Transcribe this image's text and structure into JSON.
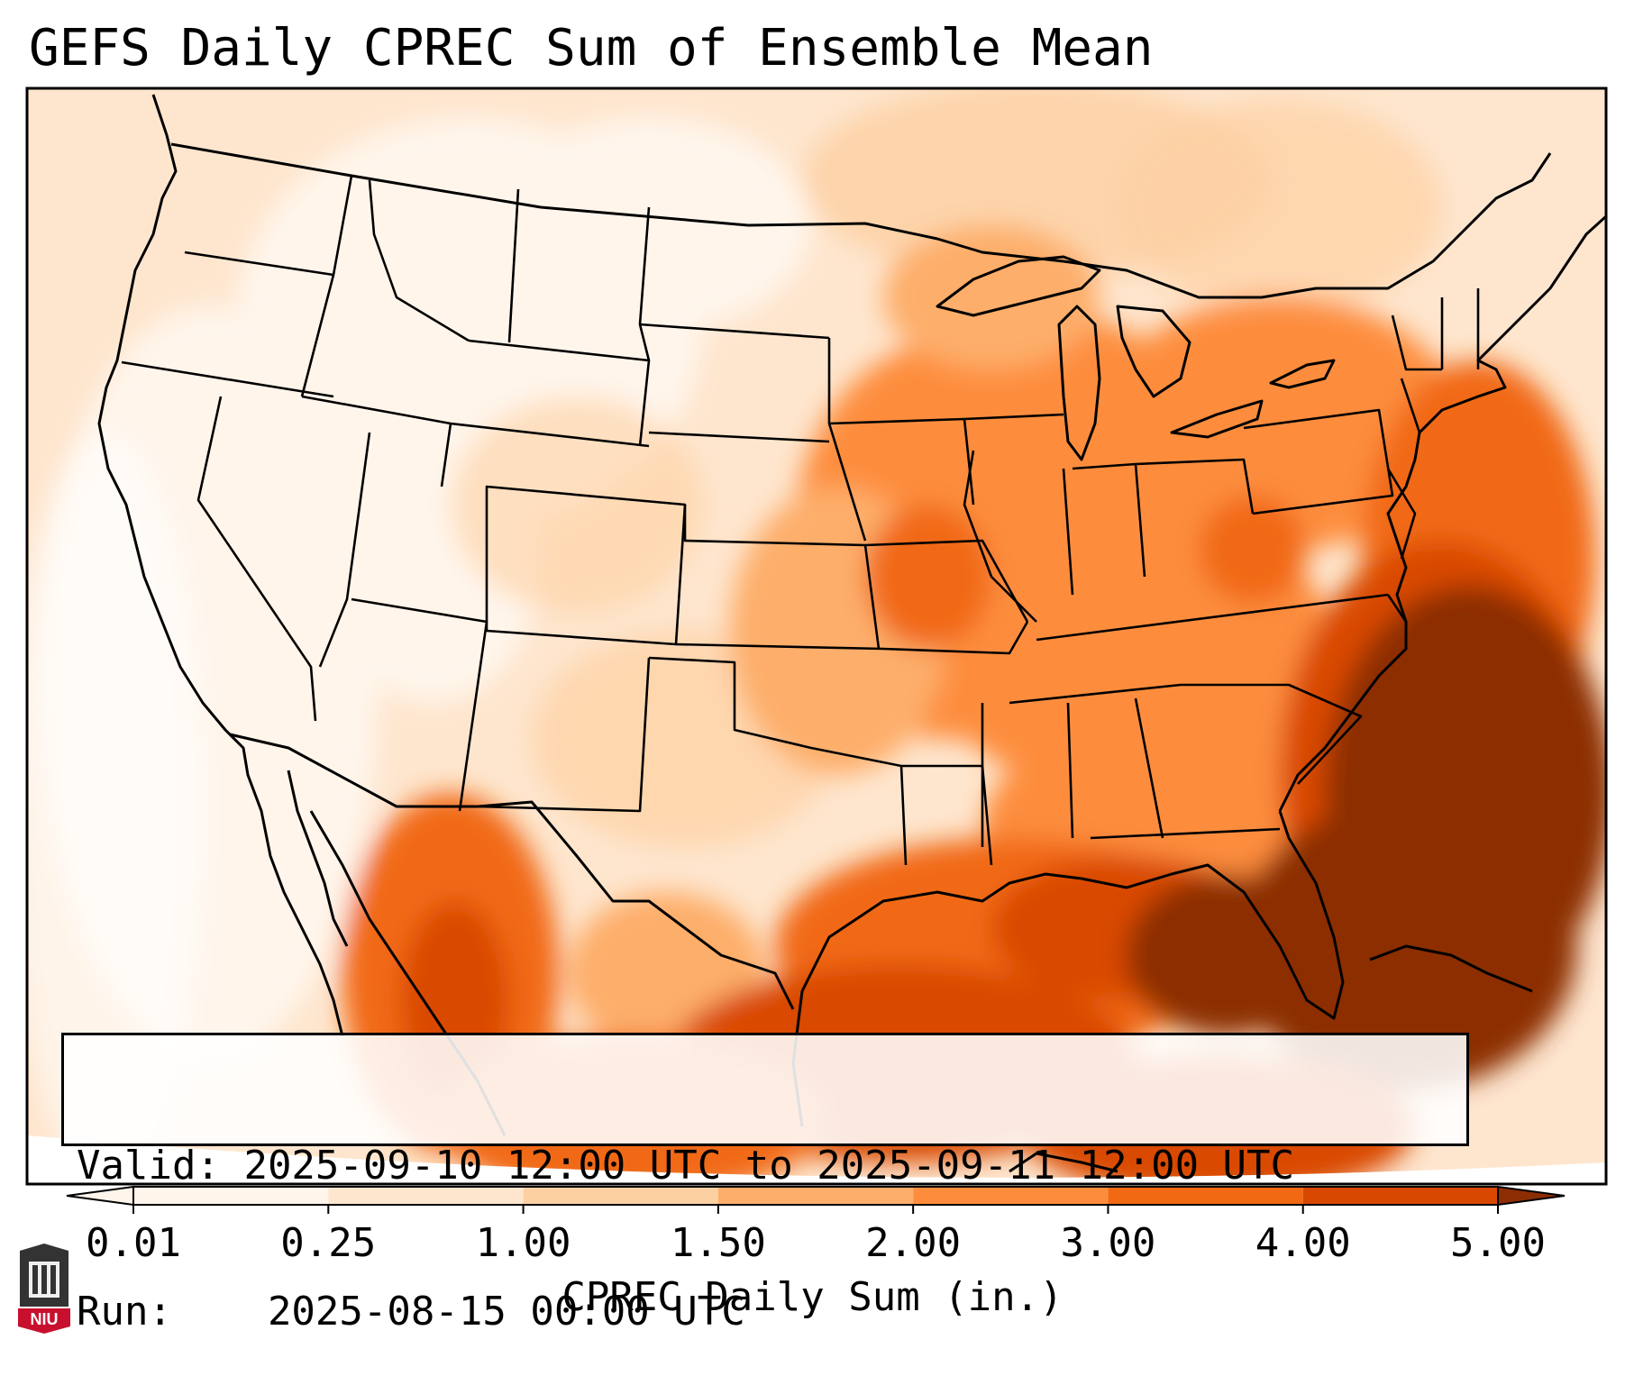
{
  "title": "GEFS Daily CPREC Sum of Ensemble Mean",
  "info": {
    "valid_label": "Valid:",
    "valid_value": "2025-09-10 12:00 UTC to 2025-09-11 12:00 UTC",
    "run_label": "Run:",
    "run_value": "2025-08-15 00:00 UTC"
  },
  "colorbar": {
    "label": "CPREC Daily Sum (in.)",
    "ticks": [
      "0.01",
      "0.25",
      "1.00",
      "1.50",
      "2.00",
      "3.00",
      "4.00",
      "5.00"
    ],
    "colors": [
      "#fff5eb",
      "#fee6ce",
      "#fdd0a2",
      "#fdae6b",
      "#fd8d3c",
      "#f16913",
      "#d94801",
      "#8c2d04"
    ],
    "extend": "both"
  },
  "logo": {
    "text": "NIU"
  },
  "map": {
    "region": "CONUS",
    "fill_colors": {
      "lightest": "#fff5eb",
      "light": "#fee6ce",
      "mid_light": "#fdd0a2",
      "mid": "#fdae6b",
      "mid_dark": "#fd8d3c",
      "dark": "#f16913",
      "darker": "#d94801",
      "darkest": "#8c2d04"
    }
  }
}
